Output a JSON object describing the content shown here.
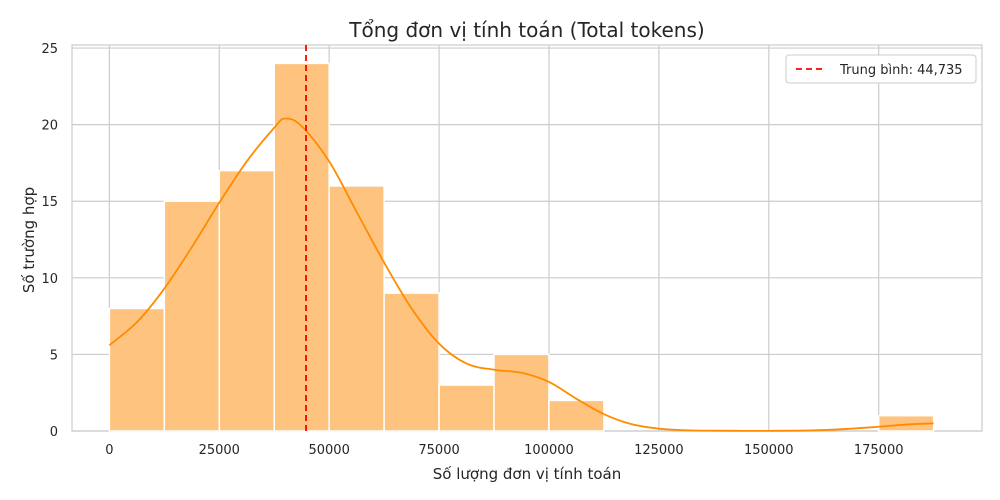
{
  "chart_data": {
    "type": "bar",
    "subtype": "histogram",
    "title": "Tổng đơn vị tính toán (Total tokens)",
    "xlabel": "Số lượng đơn vị tính toán",
    "ylabel": "Số trường hợp",
    "xlim": [
      -8500,
      198500
    ],
    "ylim": [
      0,
      25.2
    ],
    "xticks": [
      0,
      25000,
      50000,
      75000,
      100000,
      125000,
      150000,
      175000
    ],
    "yticks": [
      0,
      5,
      10,
      15,
      20,
      25
    ],
    "bins": [
      {
        "start": 0,
        "end": 12500,
        "count": 8
      },
      {
        "start": 12500,
        "end": 25000,
        "count": 15
      },
      {
        "start": 25000,
        "end": 37500,
        "count": 17
      },
      {
        "start": 37500,
        "end": 50000,
        "count": 24
      },
      {
        "start": 50000,
        "end": 62500,
        "count": 16
      },
      {
        "start": 62500,
        "end": 75000,
        "count": 9
      },
      {
        "start": 75000,
        "end": 87500,
        "count": 3
      },
      {
        "start": 87500,
        "end": 100000,
        "count": 5
      },
      {
        "start": 100000,
        "end": 112500,
        "count": 2
      },
      {
        "start": 112500,
        "end": 125000,
        "count": 0
      },
      {
        "start": 125000,
        "end": 137500,
        "count": 0
      },
      {
        "start": 137500,
        "end": 150000,
        "count": 0
      },
      {
        "start": 150000,
        "end": 162500,
        "count": 0
      },
      {
        "start": 162500,
        "end": 175000,
        "count": 0
      },
      {
        "start": 175000,
        "end": 187500,
        "count": 1
      }
    ],
    "kde": {
      "x": [
        0,
        6250,
        12500,
        18750,
        25000,
        31250,
        37500,
        40000,
        43750,
        50000,
        56250,
        62500,
        68750,
        75000,
        81250,
        87500,
        93750,
        100000,
        106250,
        112500,
        118750,
        125000,
        131250,
        137500,
        143750,
        150000,
        156250,
        162500,
        168750,
        175000,
        181250,
        187500
      ],
      "y": [
        5.6,
        7.1,
        9.3,
        12.0,
        14.9,
        17.6,
        19.8,
        20.4,
        19.9,
        17.6,
        14.3,
        11.0,
        8.0,
        5.7,
        4.4,
        4.0,
        3.8,
        3.2,
        2.1,
        1.1,
        0.45,
        0.15,
        0.05,
        0.02,
        0.01,
        0.01,
        0.02,
        0.06,
        0.15,
        0.28,
        0.42,
        0.5
      ]
    },
    "mean": {
      "value": 44735,
      "label": "Trung bình: 44,735",
      "color": "#ff0000",
      "style": "dashed"
    },
    "colors": {
      "bar_fill": "#fec47f",
      "bar_edge": "#ffffff",
      "kde_line": "#ff8c00"
    },
    "grid": true,
    "legend_position": "top-right"
  }
}
